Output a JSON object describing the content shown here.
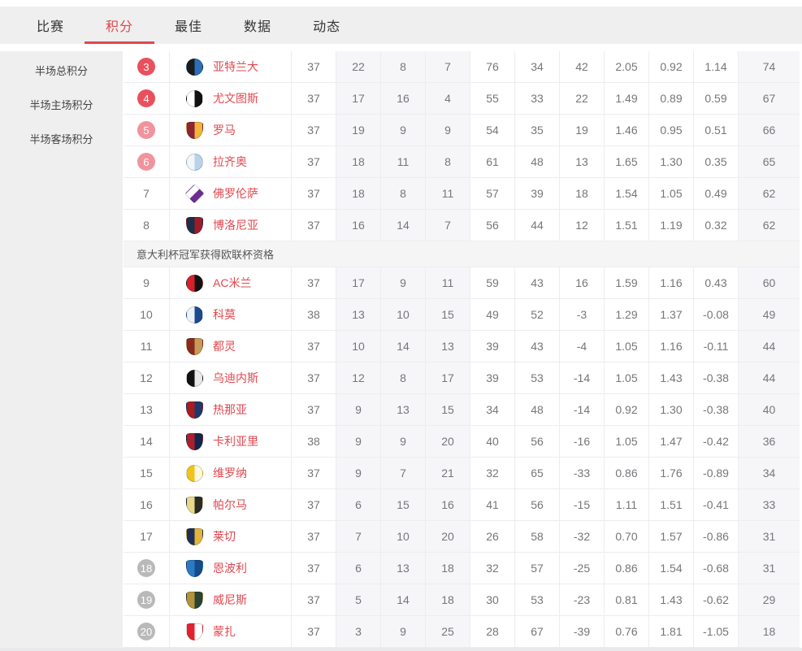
{
  "tabs": [
    {
      "label": "比赛",
      "active": false
    },
    {
      "label": "积分",
      "active": true
    },
    {
      "label": "最佳",
      "active": false
    },
    {
      "label": "数据",
      "active": false
    },
    {
      "label": "动态",
      "active": false
    }
  ],
  "sidebar": {
    "items": [
      {
        "label": "半场总积分"
      },
      {
        "label": "半场主场积分"
      },
      {
        "label": "半场客场积分"
      }
    ]
  },
  "separator_note": "意大利杯冠军获得欧联杯资格",
  "colors": {
    "accent": "#e0484f",
    "badge_red": "#e9505e",
    "badge_pink": "#f0939d",
    "badge_gray": "#b9b9b9",
    "column_tint": "#f6f6f9",
    "tab_bar_bg": "#efefef"
  },
  "table": {
    "rows": [
      {
        "rank": 3,
        "badge": "red",
        "team": "亚特兰大",
        "logo": {
          "name": "atalanta-logo",
          "shape": "circle",
          "colors": [
            "#1b1b1b",
            "#2a6fb8"
          ]
        },
        "played": 37,
        "win": 22,
        "draw": 8,
        "loss": 7,
        "goals_for": 76,
        "goals_against": 34,
        "goal_diff": 42,
        "avg_goals_for": "2.05",
        "avg_goals_against": "0.92",
        "avg_goal_diff": "1.14",
        "points": 74
      },
      {
        "rank": 4,
        "badge": "red",
        "team": "尤文图斯",
        "logo": {
          "name": "juventus-logo",
          "shape": "circle",
          "colors": [
            "#ffffff",
            "#111111"
          ]
        },
        "played": 37,
        "win": 17,
        "draw": 16,
        "loss": 4,
        "goals_for": 55,
        "goals_against": 33,
        "goal_diff": 22,
        "avg_goals_for": "1.49",
        "avg_goals_against": "0.89",
        "avg_goal_diff": "0.59",
        "points": 67
      },
      {
        "rank": 5,
        "badge": "pink",
        "team": "罗马",
        "logo": {
          "name": "roma-logo",
          "shape": "shield",
          "colors": [
            "#8e2434",
            "#f0b53c"
          ]
        },
        "played": 37,
        "win": 19,
        "draw": 9,
        "loss": 9,
        "goals_for": 54,
        "goals_against": 35,
        "goal_diff": 19,
        "avg_goals_for": "1.46",
        "avg_goals_against": "0.95",
        "avg_goal_diff": "0.51",
        "points": 66
      },
      {
        "rank": 6,
        "badge": "pink",
        "team": "拉齐奥",
        "logo": {
          "name": "lazio-logo",
          "shape": "circle",
          "colors": [
            "#f2f6fa",
            "#b8d4ea"
          ]
        },
        "played": 37,
        "win": 18,
        "draw": 11,
        "loss": 8,
        "goals_for": 61,
        "goals_against": 48,
        "goal_diff": 13,
        "avg_goals_for": "1.65",
        "avg_goals_against": "1.30",
        "avg_goal_diff": "0.35",
        "points": 65
      },
      {
        "rank": 7,
        "badge": "none",
        "team": "佛罗伦萨",
        "logo": {
          "name": "fiorentina-logo",
          "shape": "diamond",
          "colors": [
            "#ffffff",
            "#6b2d92"
          ]
        },
        "played": 37,
        "win": 18,
        "draw": 8,
        "loss": 11,
        "goals_for": 57,
        "goals_against": 39,
        "goal_diff": 18,
        "avg_goals_for": "1.54",
        "avg_goals_against": "1.05",
        "avg_goal_diff": "0.49",
        "points": 62
      },
      {
        "rank": 8,
        "badge": "none",
        "team": "博洛尼亚",
        "logo": {
          "name": "bologna-logo",
          "shape": "shield",
          "colors": [
            "#1a2f48",
            "#9e1b28"
          ]
        },
        "played": 37,
        "win": 16,
        "draw": 14,
        "loss": 7,
        "goals_for": 56,
        "goals_against": 44,
        "goal_diff": 12,
        "avg_goals_for": "1.51",
        "avg_goals_against": "1.19",
        "avg_goal_diff": "0.32",
        "points": 62
      },
      {
        "rank": 9,
        "badge": "none",
        "team": "AC米兰",
        "logo": {
          "name": "ac-milan-logo",
          "shape": "circle",
          "colors": [
            "#d7202a",
            "#111111"
          ]
        },
        "played": 37,
        "win": 17,
        "draw": 9,
        "loss": 11,
        "goals_for": 59,
        "goals_against": 43,
        "goal_diff": 16,
        "avg_goals_for": "1.59",
        "avg_goals_against": "1.16",
        "avg_goal_diff": "0.43",
        "points": 60
      },
      {
        "rank": 10,
        "badge": "none",
        "team": "科莫",
        "logo": {
          "name": "como-logo",
          "shape": "circle",
          "colors": [
            "#eef3f8",
            "#1b4a8f"
          ]
        },
        "played": 38,
        "win": 13,
        "draw": 10,
        "loss": 15,
        "goals_for": 49,
        "goals_against": 52,
        "goal_diff": -3,
        "avg_goals_for": "1.29",
        "avg_goals_against": "1.37",
        "avg_goal_diff": "-0.08",
        "points": 49
      },
      {
        "rank": 11,
        "badge": "none",
        "team": "都灵",
        "logo": {
          "name": "torino-logo",
          "shape": "shield",
          "colors": [
            "#8a2a1e",
            "#c79b56"
          ]
        },
        "played": 37,
        "win": 10,
        "draw": 14,
        "loss": 13,
        "goals_for": 39,
        "goals_against": 43,
        "goal_diff": -4,
        "avg_goals_for": "1.05",
        "avg_goals_against": "1.16",
        "avg_goal_diff": "-0.11",
        "points": 44
      },
      {
        "rank": 12,
        "badge": "none",
        "team": "乌迪内斯",
        "logo": {
          "name": "udinese-logo",
          "shape": "circle",
          "colors": [
            "#111111",
            "#e8e8e8"
          ]
        },
        "played": 37,
        "win": 12,
        "draw": 8,
        "loss": 17,
        "goals_for": 39,
        "goals_against": 53,
        "goal_diff": -14,
        "avg_goals_for": "1.05",
        "avg_goals_against": "1.43",
        "avg_goal_diff": "-0.38",
        "points": 44
      },
      {
        "rank": 13,
        "badge": "none",
        "team": "热那亚",
        "logo": {
          "name": "genoa-logo",
          "shape": "shield",
          "colors": [
            "#a81c22",
            "#1b3a6b"
          ]
        },
        "played": 37,
        "win": 9,
        "draw": 13,
        "loss": 15,
        "goals_for": 34,
        "goals_against": 48,
        "goal_diff": -14,
        "avg_goals_for": "0.92",
        "avg_goals_against": "1.30",
        "avg_goal_diff": "-0.38",
        "points": 40
      },
      {
        "rank": 14,
        "badge": "none",
        "team": "卡利亚里",
        "logo": {
          "name": "cagliari-logo",
          "shape": "shield",
          "colors": [
            "#ad1f2c",
            "#12264d"
          ]
        },
        "played": 38,
        "win": 9,
        "draw": 9,
        "loss": 20,
        "goals_for": 40,
        "goals_against": 56,
        "goal_diff": -16,
        "avg_goals_for": "1.05",
        "avg_goals_against": "1.47",
        "avg_goal_diff": "-0.42",
        "points": 36
      },
      {
        "rank": 15,
        "badge": "none",
        "team": "维罗纳",
        "logo": {
          "name": "verona-logo",
          "shape": "circle",
          "colors": [
            "#f0c419",
            "#fdf8e2"
          ]
        },
        "played": 37,
        "win": 9,
        "draw": 7,
        "loss": 21,
        "goals_for": 32,
        "goals_against": 65,
        "goal_diff": -33,
        "avg_goals_for": "0.86",
        "avg_goals_against": "1.76",
        "avg_goal_diff": "-0.89",
        "points": 34
      },
      {
        "rank": 16,
        "badge": "none",
        "team": "帕尔马",
        "logo": {
          "name": "parma-logo",
          "shape": "shield",
          "colors": [
            "#e8d98a",
            "#2a2a26"
          ]
        },
        "played": 37,
        "win": 6,
        "draw": 15,
        "loss": 16,
        "goals_for": 41,
        "goals_against": 56,
        "goal_diff": -15,
        "avg_goals_for": "1.11",
        "avg_goals_against": "1.51",
        "avg_goal_diff": "-0.41",
        "points": 33
      },
      {
        "rank": 17,
        "badge": "none",
        "team": "莱切",
        "logo": {
          "name": "lecce-logo",
          "shape": "shield",
          "colors": [
            "#1f3054",
            "#e3b53a"
          ]
        },
        "played": 37,
        "win": 7,
        "draw": 10,
        "loss": 20,
        "goals_for": 26,
        "goals_against": 58,
        "goal_diff": -32,
        "avg_goals_for": "0.70",
        "avg_goals_against": "1.57",
        "avg_goal_diff": "-0.86",
        "points": 31
      },
      {
        "rank": 18,
        "badge": "gray",
        "team": "恩波利",
        "logo": {
          "name": "empoli-logo",
          "shape": "shield",
          "colors": [
            "#2b7bc2",
            "#164a8a"
          ]
        },
        "played": 37,
        "win": 6,
        "draw": 13,
        "loss": 18,
        "goals_for": 32,
        "goals_against": 57,
        "goal_diff": -25,
        "avg_goals_for": "0.86",
        "avg_goals_against": "1.54",
        "avg_goal_diff": "-0.68",
        "points": 31
      },
      {
        "rank": 19,
        "badge": "gray",
        "team": "威尼斯",
        "logo": {
          "name": "venezia-logo",
          "shape": "shield",
          "colors": [
            "#b5923c",
            "#274434"
          ]
        },
        "played": 37,
        "win": 5,
        "draw": 14,
        "loss": 18,
        "goals_for": 30,
        "goals_against": 53,
        "goal_diff": -23,
        "avg_goals_for": "0.81",
        "avg_goals_against": "1.43",
        "avg_goal_diff": "-0.62",
        "points": 29
      },
      {
        "rank": 20,
        "badge": "gray",
        "team": "蒙扎",
        "logo": {
          "name": "monza-logo",
          "shape": "shield",
          "colors": [
            "#e5212e",
            "#ffffff"
          ]
        },
        "played": 37,
        "win": 3,
        "draw": 9,
        "loss": 25,
        "goals_for": 28,
        "goals_against": 67,
        "goal_diff": -39,
        "avg_goals_for": "0.76",
        "avg_goals_against": "1.81",
        "avg_goal_diff": "-1.05",
        "points": 18
      }
    ]
  }
}
